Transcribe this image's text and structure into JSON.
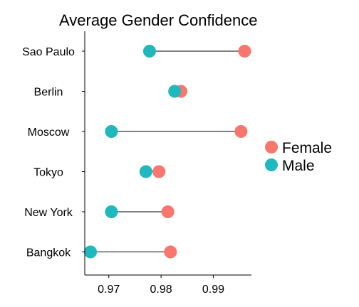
{
  "chart_data": {
    "type": "dumbbell",
    "title": "Average Gender Confidence",
    "xlabel": "",
    "ylabel": "",
    "categories": [
      "Sao Paulo",
      "Berlin",
      "Moscow",
      "Tokyo",
      "New York",
      "Bangkok"
    ],
    "series": [
      {
        "name": "Female",
        "color": "#F8766D",
        "values": [
          0.996,
          0.9838,
          0.9953,
          0.9796,
          0.9813,
          0.9818
        ]
      },
      {
        "name": "Male",
        "color": "#1FB8BD",
        "values": [
          0.9778,
          0.9826,
          0.9705,
          0.9771,
          0.9705,
          0.9665
        ]
      }
    ],
    "x_ticks": [
      0.97,
      0.98,
      0.99
    ],
    "x_tick_labels": [
      "0.97",
      "0.98",
      "0.99"
    ],
    "xlim": [
      0.9654,
      0.9973
    ],
    "grid": false,
    "legend_position": "right"
  }
}
